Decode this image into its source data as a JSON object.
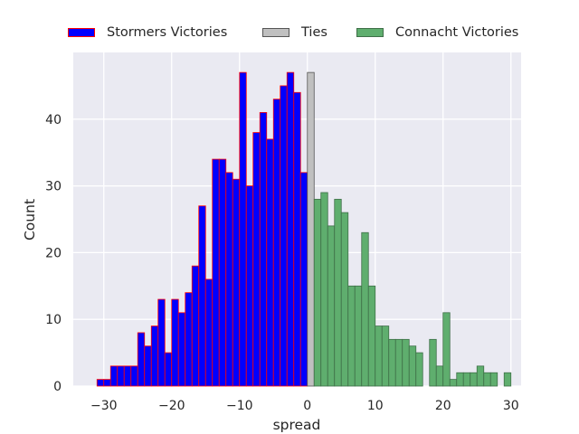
{
  "chart_data": {
    "type": "bar",
    "title": "",
    "xlabel": "spread",
    "ylabel": "Count",
    "xlim": [
      -34.5,
      31.5
    ],
    "ylim": [
      0,
      50
    ],
    "x_ticks": [
      -30,
      -20,
      -10,
      0,
      10,
      20,
      30
    ],
    "y_ticks": [
      0,
      10,
      20,
      30,
      40
    ],
    "x_tick_labels": [
      "−30",
      "−20",
      "−10",
      "0",
      "10",
      "20",
      "30"
    ],
    "y_tick_labels": [
      "0",
      "10",
      "20",
      "30",
      "40"
    ],
    "grid": true,
    "legend_position": "top",
    "series": [
      {
        "name": "Stormers Victories",
        "color": "#0000ff",
        "edge_color": "#ff0000",
        "bins": [
          [
            -31,
            1
          ],
          [
            -30,
            1
          ],
          [
            -29,
            3
          ],
          [
            -28,
            3
          ],
          [
            -27,
            3
          ],
          [
            -26,
            3
          ],
          [
            -25,
            8
          ],
          [
            -24,
            6
          ],
          [
            -23,
            9
          ],
          [
            -22,
            13
          ],
          [
            -21,
            5
          ],
          [
            -20,
            13
          ],
          [
            -19,
            11
          ],
          [
            -18,
            14
          ],
          [
            -17,
            18
          ],
          [
            -16,
            27
          ],
          [
            -15,
            16
          ],
          [
            -14,
            34
          ],
          [
            -13,
            34
          ],
          [
            -12,
            32
          ],
          [
            -11,
            31
          ],
          [
            -10,
            47
          ],
          [
            -9,
            30
          ],
          [
            -8,
            38
          ],
          [
            -7,
            41
          ],
          [
            -6,
            37
          ],
          [
            -5,
            43
          ],
          [
            -4,
            45
          ],
          [
            -3,
            47
          ],
          [
            -2,
            44
          ],
          [
            -1,
            32
          ]
        ]
      },
      {
        "name": "Ties",
        "color": "#c0c0c0",
        "edge_color": "#555555",
        "bins": [
          [
            0,
            47
          ]
        ]
      },
      {
        "name": "Connacht Victories",
        "color": "#5fae6e",
        "edge_color": "#3f6f48",
        "bins": [
          [
            1,
            28
          ],
          [
            2,
            29
          ],
          [
            3,
            24
          ],
          [
            4,
            28
          ],
          [
            5,
            26
          ],
          [
            6,
            15
          ],
          [
            7,
            15
          ],
          [
            8,
            23
          ],
          [
            9,
            15
          ],
          [
            10,
            9
          ],
          [
            11,
            9
          ],
          [
            12,
            7
          ],
          [
            13,
            7
          ],
          [
            14,
            7
          ],
          [
            15,
            6
          ],
          [
            16,
            5
          ],
          [
            18,
            7
          ],
          [
            19,
            3
          ],
          [
            20,
            11
          ],
          [
            21,
            1
          ],
          [
            22,
            2
          ],
          [
            23,
            2
          ],
          [
            24,
            2
          ],
          [
            25,
            3
          ],
          [
            26,
            2
          ],
          [
            27,
            2
          ],
          [
            29,
            2
          ]
        ]
      }
    ]
  }
}
